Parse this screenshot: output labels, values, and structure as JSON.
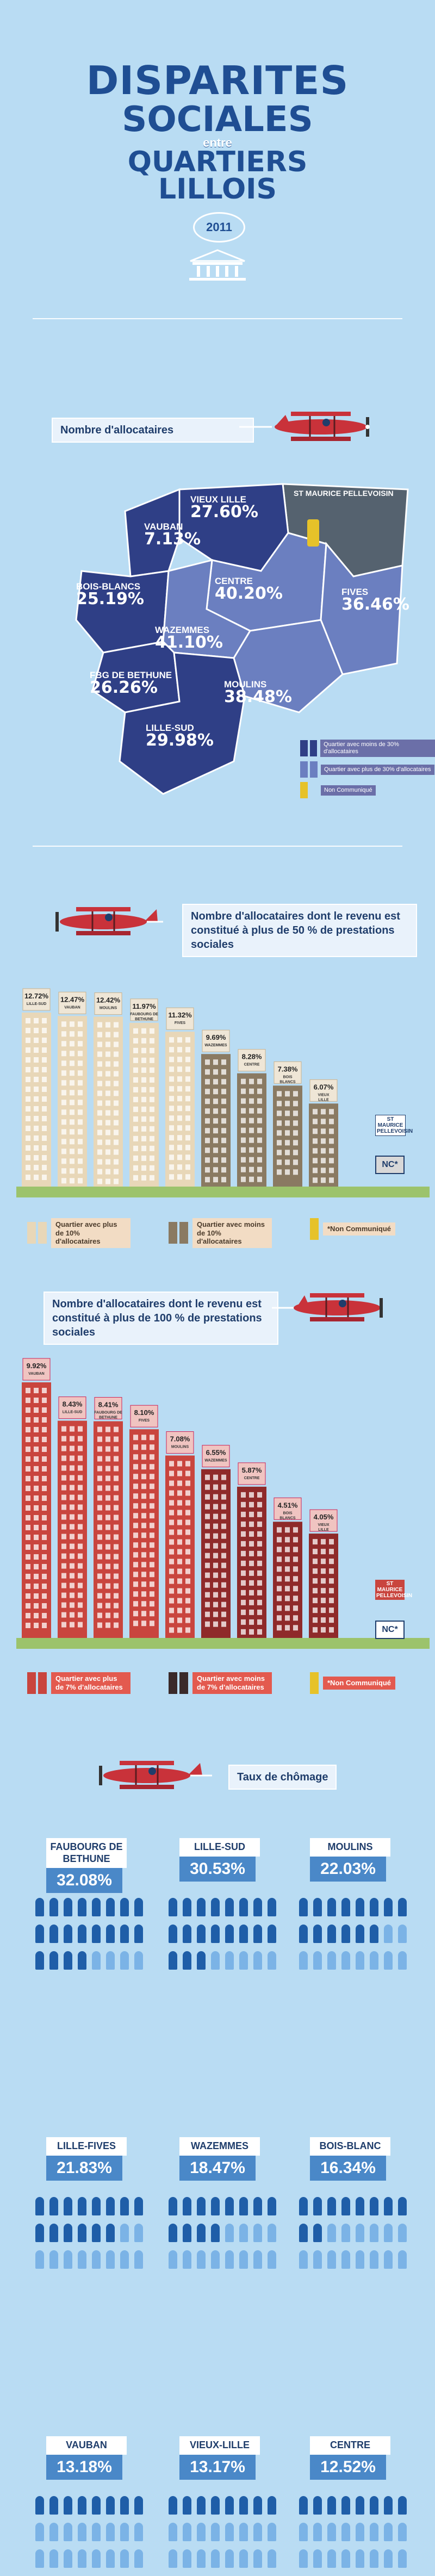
{
  "header": {
    "title_line1": "DISPARITES",
    "title_line2": "SOCIALES",
    "title_entre": "entre",
    "title_line3": "QUARTIERS",
    "title_line4": "LILLOIS",
    "year": "2011"
  },
  "section1": {
    "label": "Nombre d'allocataires",
    "map": [
      {
        "name": "VIEUX LILLE",
        "value": "27.60%"
      },
      {
        "name": "ST MAURICE PELLEVOISIN",
        "value": ""
      },
      {
        "name": "VAUBAN",
        "value": "7.13%"
      },
      {
        "name": "BOIS-BLANCS",
        "value": "25.19%"
      },
      {
        "name": "CENTRE",
        "value": "40.20%"
      },
      {
        "name": "FIVES",
        "value": "36.46%"
      },
      {
        "name": "WAZEMMES",
        "value": "41.10%"
      },
      {
        "name": "FBG DE BETHUNE",
        "value": "26.26%"
      },
      {
        "name": "MOULINS",
        "value": "38.48%"
      },
      {
        "name": "LILLE-SUD",
        "value": "29.98%"
      }
    ],
    "legend": [
      {
        "text": "Quartier avec moins de 30% d'allocataires"
      },
      {
        "text": "Quartier avec plus de 30% d'allocataires"
      },
      {
        "text": "Non Communiqué"
      }
    ]
  },
  "section2": {
    "label": "Nombre d'allocataires dont le revenu est constitué à plus de 50 % de prestations sociales",
    "bars": [
      {
        "name": "LILLE-SUD",
        "value": "12.72%"
      },
      {
        "name": "VAUBAN",
        "value": "12.47%"
      },
      {
        "name": "MOULINS",
        "value": "12.42%"
      },
      {
        "name": "FAUBOURG DE BETHUNE",
        "value": "11.97%"
      },
      {
        "name": "FIVES",
        "value": "11.32%"
      },
      {
        "name": "WAZEMMES",
        "value": "9.69%"
      },
      {
        "name": "CENTRE",
        "value": "8.28%"
      },
      {
        "name": "BOIS BLANCS",
        "value": "7.38%"
      },
      {
        "name": "VIEUX LILLE",
        "value": "6.07%"
      }
    ],
    "nc_name": "ST MAURICE PELLEVOISIN",
    "nc_label": "NC*",
    "legend_plus": "Quartier avec plus de 10% d'allocataires",
    "legend_moins": "Quartier avec moins de 10% d'allocataires",
    "legend_nc": "*Non Communiqué"
  },
  "section3": {
    "label": "Nombre d'allocataires dont le revenu est constitué à plus de 100 % de prestations sociales",
    "bars": [
      {
        "name": "VAUBAN",
        "value": "9.92%"
      },
      {
        "name": "LILLE-SUD",
        "value": "8.43%"
      },
      {
        "name": "FAUBOURG DE BETHUNE",
        "value": "8.41%"
      },
      {
        "name": "FIVES",
        "value": "8.10%"
      },
      {
        "name": "MOULINS",
        "value": "7.08%"
      },
      {
        "name": "WAZEMMES",
        "value": "6.55%"
      },
      {
        "name": "CENTRE",
        "value": "5.87%"
      },
      {
        "name": "BOIS BLANCS",
        "value": "4.51%"
      },
      {
        "name": "VIEUX LILLE",
        "value": "4.05%"
      }
    ],
    "nc_name": "ST MAURICE PELLEVOISIN",
    "nc_label": "NC*",
    "legend_plus": "Quartier avec plus de 7% d'allocataires",
    "legend_moins": "Quartier avec moins de 7% d'allocataires",
    "legend_nc": "*Non Communiqué"
  },
  "section4": {
    "label": "Taux de chômage",
    "cards": [
      {
        "name": "FAUBOURG DE BETHUNE",
        "value": "32.08%",
        "rate": 0.3208
      },
      {
        "name": "LILLE-SUD",
        "value": "30.53%",
        "rate": 0.3053
      },
      {
        "name": "MOULINS",
        "value": "22.03%",
        "rate": 0.2203
      },
      {
        "name": "LILLE-FIVES",
        "value": "21.83%",
        "rate": 0.2183
      },
      {
        "name": "WAZEMMES",
        "value": "18.47%",
        "rate": 0.1847
      },
      {
        "name": "BOIS-BLANC",
        "value": "16.34%",
        "rate": 0.1634
      },
      {
        "name": "VAUBAN",
        "value": "13.18%",
        "rate": 0.1318
      },
      {
        "name": "VIEUX-LILLE",
        "value": "13.17%",
        "rate": 0.1317
      },
      {
        "name": "CENTRE",
        "value": "12.52%",
        "rate": 0.1252
      }
    ]
  },
  "colors": {
    "background": "#b9dcf3",
    "title": "#1f4e93",
    "map_dark": "#2f3f86",
    "map_light": "#6b7fc0",
    "bar_beige": "#e8d7b8",
    "bar_brown": "#8a7a62",
    "bar_red": "#c9453e",
    "plane_red": "#c9323a",
    "person_dark": "#1f5ea8",
    "person_light": "#7bb3e6"
  }
}
